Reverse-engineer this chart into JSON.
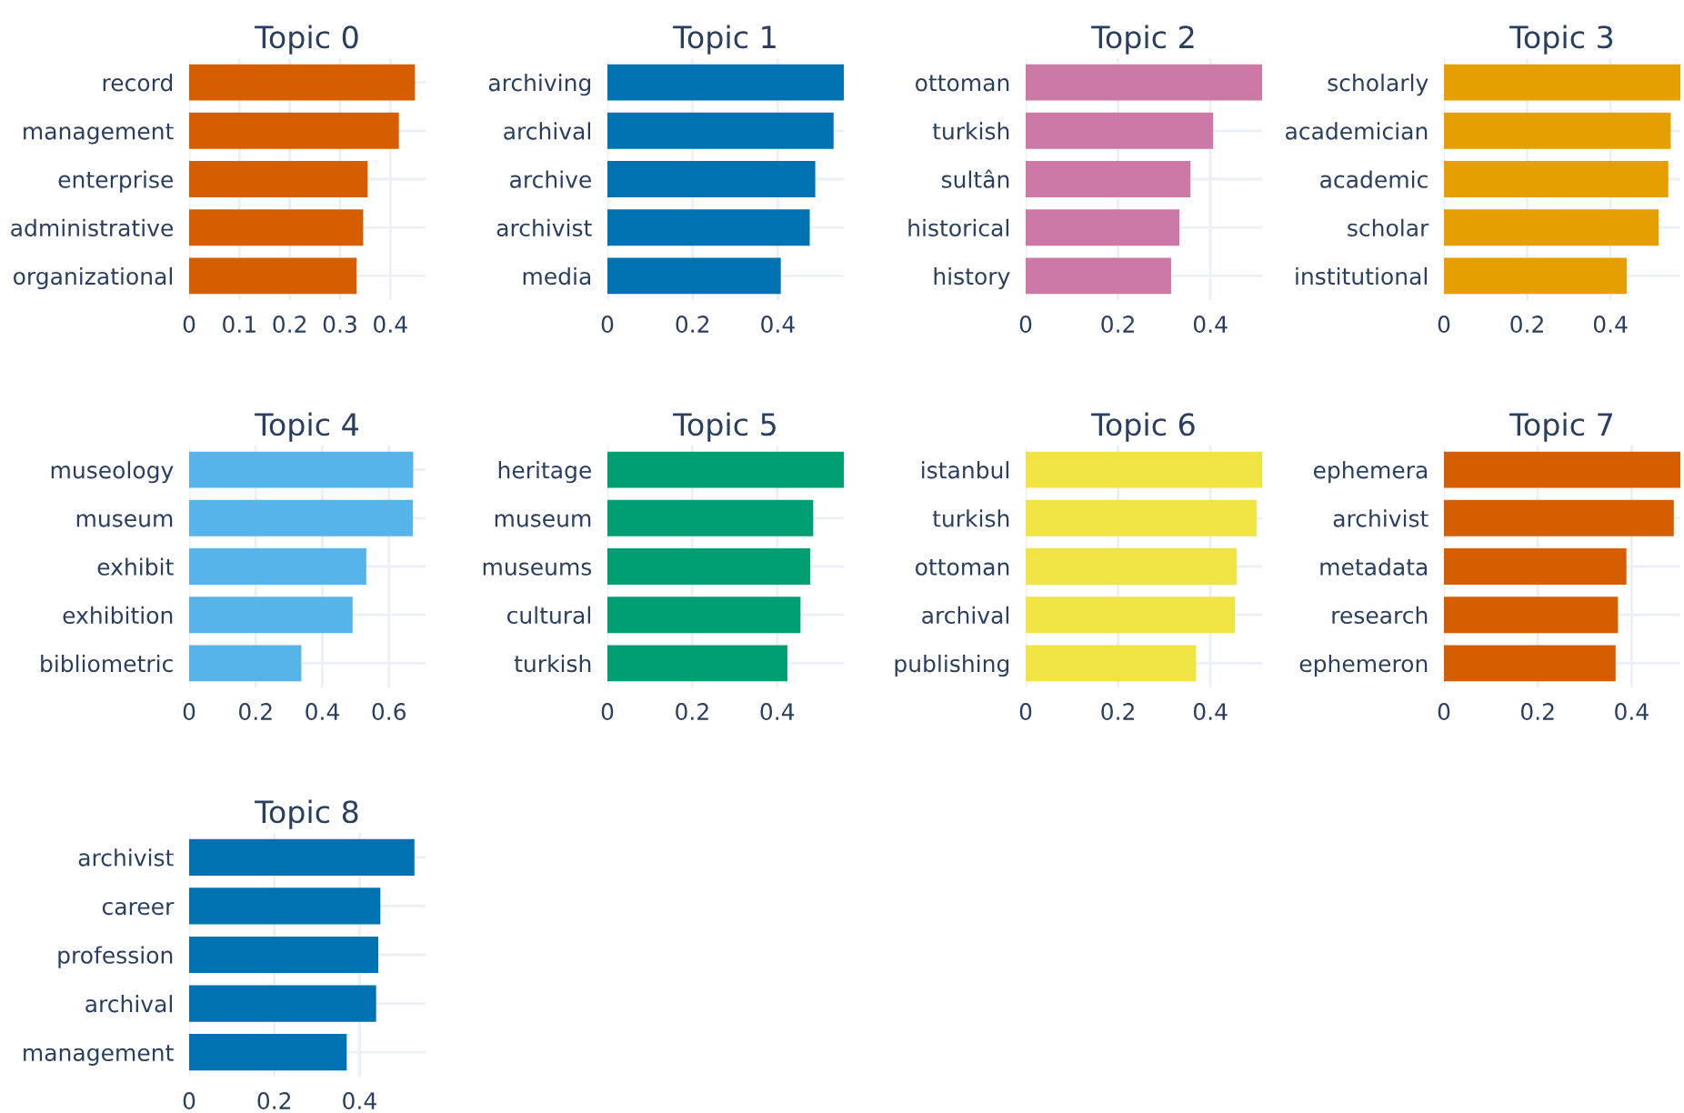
{
  "chart_data": [
    {
      "type": "bar",
      "orientation": "horizontal",
      "title": "Topic 0",
      "categories": [
        "record",
        "management",
        "enterprise",
        "administrative",
        "organizational"
      ],
      "values": [
        0.449,
        0.417,
        0.355,
        0.346,
        0.333
      ],
      "color": "#d55e00",
      "xlim": [
        0,
        0.47
      ],
      "xticks": [
        0,
        0.1,
        0.2,
        0.3,
        0.4
      ],
      "grid": true
    },
    {
      "type": "bar",
      "orientation": "horizontal",
      "title": "Topic 1",
      "categories": [
        "archiving",
        "archival",
        "archive",
        "archivist",
        "media"
      ],
      "values": [
        0.555,
        0.531,
        0.488,
        0.475,
        0.407
      ],
      "color": "#0072b2",
      "xlim": [
        0,
        0.555
      ],
      "xticks": [
        0,
        0.2,
        0.4
      ],
      "grid": true
    },
    {
      "type": "bar",
      "orientation": "horizontal",
      "title": "Topic 2",
      "categories": [
        "ottoman",
        "turkish",
        "sultân",
        "historical",
        "history"
      ],
      "values": [
        0.512,
        0.406,
        0.357,
        0.333,
        0.315
      ],
      "color": "#cc79a7",
      "xlim": [
        0,
        0.512
      ],
      "xticks": [
        0,
        0.2,
        0.4
      ],
      "grid": true
    },
    {
      "type": "bar",
      "orientation": "horizontal",
      "title": "Topic 3",
      "categories": [
        "scholarly",
        "academician",
        "academic",
        "scholar",
        "institutional"
      ],
      "values": [
        0.568,
        0.545,
        0.539,
        0.516,
        0.439
      ],
      "color": "#e69f00",
      "xlim": [
        0,
        0.568
      ],
      "xticks": [
        0,
        0.2,
        0.4
      ],
      "grid": true
    },
    {
      "type": "bar",
      "orientation": "horizontal",
      "title": "Topic 4",
      "categories": [
        "museology",
        "museum",
        "exhibit",
        "exhibition",
        "bibliometric"
      ],
      "values": [
        0.673,
        0.672,
        0.532,
        0.491,
        0.337
      ],
      "color": "#56b4e9",
      "xlim": [
        0,
        0.71
      ],
      "xticks": [
        0,
        0.2,
        0.4,
        0.6
      ],
      "grid": true
    },
    {
      "type": "bar",
      "orientation": "horizontal",
      "title": "Topic 5",
      "categories": [
        "heritage",
        "museum",
        "museums",
        "cultural",
        "turkish"
      ],
      "values": [
        0.557,
        0.485,
        0.478,
        0.455,
        0.424
      ],
      "color": "#009e73",
      "xlim": [
        0,
        0.557
      ],
      "xticks": [
        0,
        0.2,
        0.4
      ],
      "grid": true
    },
    {
      "type": "bar",
      "orientation": "horizontal",
      "title": "Topic 6",
      "categories": [
        "istanbul",
        "turkish",
        "ottoman",
        "archival",
        "publishing"
      ],
      "values": [
        0.512,
        0.5,
        0.457,
        0.453,
        0.369
      ],
      "color": "#f0e442",
      "xlim": [
        0,
        0.512
      ],
      "xticks": [
        0,
        0.2,
        0.4
      ],
      "grid": true
    },
    {
      "type": "bar",
      "orientation": "horizontal",
      "title": "Topic 7",
      "categories": [
        "ephemera",
        "archivist",
        "metadata",
        "research",
        "ephemeron"
      ],
      "values": [
        0.504,
        0.49,
        0.389,
        0.371,
        0.366
      ],
      "color": "#d55e00",
      "xlim": [
        0,
        0.504
      ],
      "xticks": [
        0,
        0.2,
        0.4
      ],
      "grid": true
    },
    {
      "type": "bar",
      "orientation": "horizontal",
      "title": "Topic 8",
      "categories": [
        "archivist",
        "career",
        "profession",
        "archival",
        "management"
      ],
      "values": [
        0.529,
        0.449,
        0.444,
        0.439,
        0.37
      ],
      "color": "#0072b2",
      "xlim": [
        0,
        0.555
      ],
      "xticks": [
        0,
        0.2,
        0.4
      ],
      "grid": true
    }
  ]
}
